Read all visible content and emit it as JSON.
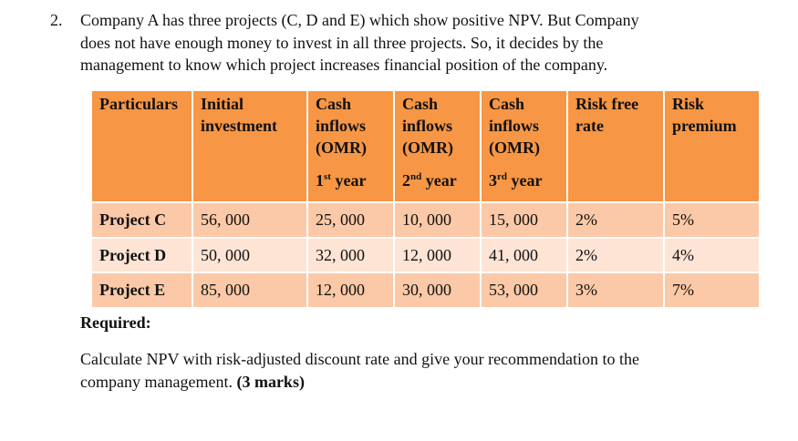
{
  "question": {
    "number": "2.",
    "lines": [
      "Company A has three projects (C, D and E) which show positive NPV. But Company",
      "does not have enough money to invest in all three projects. So, it decides by the",
      "management to know which project increases financial position of the company."
    ]
  },
  "table": {
    "headers": {
      "particulars": "Particulars",
      "initial_1": "Initial",
      "initial_2": "investment",
      "cash1_1": "Cash",
      "cash1_2": "inflows",
      "cash1_3": "(OMR)",
      "cash1_year_num": "1",
      "cash1_year_sup": "st",
      "cash1_year_word": " year",
      "cash2_1": "Cash",
      "cash2_2": "inflows",
      "cash2_3": "(OMR)",
      "cash2_year_num": "2",
      "cash2_year_sup": "nd",
      "cash2_year_word": " year",
      "cash3_1": "Cash",
      "cash3_2": "inflows",
      "cash3_3": "(OMR)",
      "cash3_year_num": "3",
      "cash3_year_sup": "rd",
      "cash3_year_word": " year",
      "riskfree_1": "Risk free",
      "riskfree_2": "rate",
      "premium_1": "Risk",
      "premium_2": "premium"
    },
    "rows": [
      {
        "name": "Project C",
        "initial": "56, 000",
        "y1": "25, 000",
        "y2": "10, 000",
        "y3": "15, 000",
        "rf": "2%",
        "rp": "5%"
      },
      {
        "name": "Project D",
        "initial": "50, 000",
        "y1": "32, 000",
        "y2": "12, 000",
        "y3": "41, 000",
        "rf": "2%",
        "rp": "4%"
      },
      {
        "name": "Project E",
        "initial": "85, 000",
        "y1": "12, 000",
        "y2": "30, 000",
        "y3": "53, 000",
        "rf": "3%",
        "rp": "7%"
      }
    ]
  },
  "required_label": "Required:",
  "instruction": {
    "line1": "Calculate NPV with risk-adjusted discount rate and give your recommendation to the",
    "line2_text": "company management. ",
    "line2_marks": "(3 marks)"
  },
  "colors": {
    "header_bg": "#f79645",
    "row_dark": "#fbc9a7",
    "row_light": "#fde4d5"
  }
}
